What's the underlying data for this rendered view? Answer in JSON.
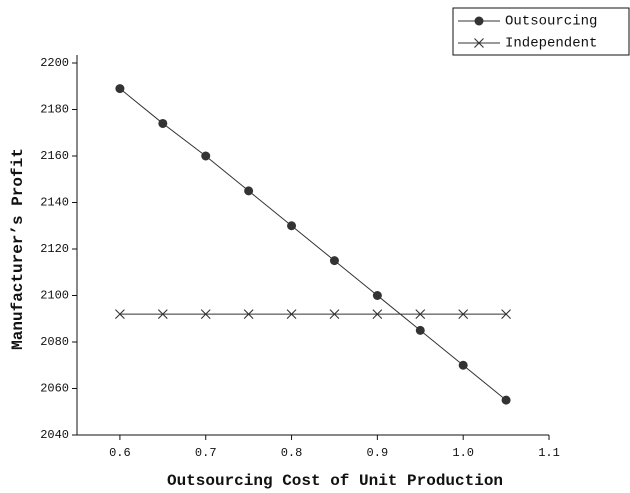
{
  "chart_data": {
    "type": "line",
    "x_label": "Outsourcing Cost of Unit Production",
    "y_label": "Manufacturer’s Profit",
    "x": [
      0.6,
      0.65,
      0.7,
      0.75,
      0.8,
      0.85,
      0.9,
      0.95,
      1.0,
      1.05
    ],
    "series": [
      {
        "name": "Outsourcing",
        "color": "#333333",
        "marker": "circle",
        "values": [
          2189,
          2174,
          2160,
          2145,
          2130,
          2115,
          2100,
          2085,
          2070,
          2055
        ]
      },
      {
        "name": "Independent",
        "color": "#333333",
        "marker": "x",
        "values": [
          2092,
          2092,
          2092,
          2092,
          2092,
          2092,
          2092,
          2092,
          2092,
          2092
        ]
      }
    ],
    "xlim": [
      0.55,
      1.1
    ],
    "xticks": [
      0.6,
      0.7,
      0.8,
      0.9,
      {
        "value": 1.0,
        "label": "1.0"
      },
      1.1
    ],
    "ylim": [
      2040,
      2200
    ],
    "yticks": [
      2040,
      2060,
      2080,
      2100,
      2120,
      2140,
      2160,
      2180,
      2200
    ],
    "legend": "upper right"
  }
}
